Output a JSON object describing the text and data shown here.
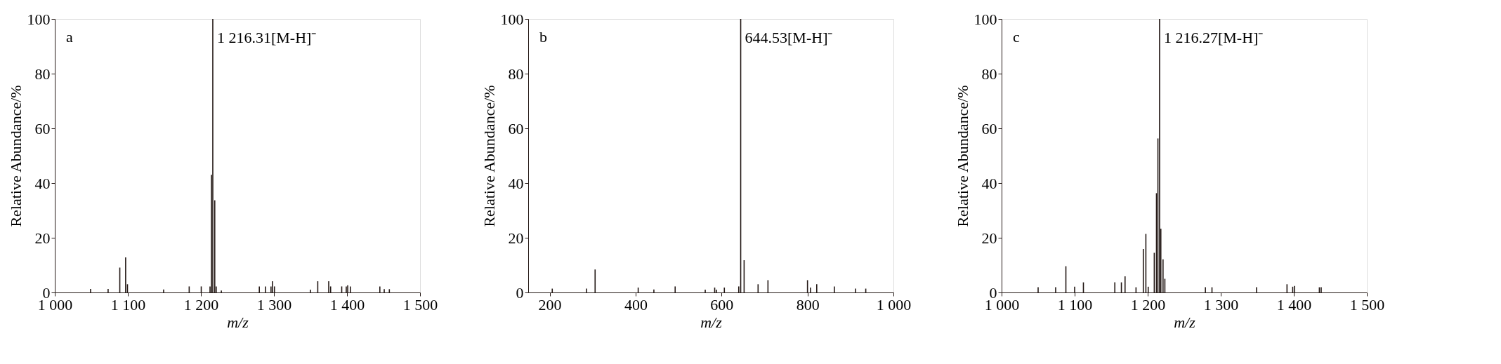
{
  "chart_data": [
    {
      "type": "bar",
      "xlabel": "m/z",
      "ylabel": "Relative Abundance/%",
      "xlim": [
        1000,
        1500
      ],
      "xticks": [
        {
          "value": 1000,
          "label": "1 000"
        },
        {
          "value": 1100,
          "label": "1 100"
        },
        {
          "value": 1200,
          "label": "1 200"
        },
        {
          "value": 1300,
          "label": "1 300"
        },
        {
          "value": 1400,
          "label": "1 400"
        },
        {
          "value": 1500,
          "label": "1 500"
        }
      ],
      "ylim": [
        0,
        100
      ],
      "yticks": [
        0,
        20,
        40,
        60,
        80,
        100
      ],
      "annotations": [
        "a",
        {
          "text": "1 216.31[M-H]⁻",
          "x": 1216.31,
          "y": 93
        }
      ],
      "x": [
        1049,
        1073,
        1089,
        1097,
        1099.5,
        1149,
        1184,
        1200.5,
        1212.5,
        1214.5,
        1216.31,
        1219,
        1221,
        1228,
        1280,
        1288.5,
        1296,
        1298,
        1300.7,
        1350,
        1360,
        1375,
        1377.6,
        1392.8,
        1399,
        1401,
        1404.7,
        1445,
        1451,
        1458
      ],
      "series": [
        {
          "color": "#231815",
          "values": [
            1.3,
            1.3,
            9.1,
            12.8,
            3.0,
            1.1,
            2.2,
            2.2,
            2.2,
            43,
            100,
            33.7,
            2.2,
            0.7,
            2.2,
            2.2,
            2.2,
            4.1,
            2.2,
            1.0,
            4.1,
            4.1,
            2.2,
            2.2,
            2.2,
            2.6,
            2.2,
            2.2,
            1.2,
            1.2
          ]
        }
      ]
    },
    {
      "type": "bar",
      "xlabel": "m/z",
      "ylabel": "Relative Abundance/%",
      "xlim": [
        150,
        1000
      ],
      "xticks": [
        200,
        400,
        600,
        800,
        {
          "value": 1000,
          "label": "1 000"
        }
      ],
      "ylim": [
        0,
        100
      ],
      "yticks": [
        0,
        20,
        40,
        60,
        80,
        100
      ],
      "annotations": [
        "b",
        {
          "text": "644.53[M-H]⁻",
          "x": 644.53,
          "y": 93
        }
      ],
      "x": [
        206,
        286,
        305.7,
        406,
        442.5,
        492,
        562,
        584,
        588,
        606.5,
        640,
        644.53,
        652.5,
        685,
        708,
        800,
        807,
        821.5,
        862.5,
        912,
        935.6
      ],
      "series": [
        {
          "color": "#231815",
          "values": [
            1.4,
            1.4,
            8.4,
            1.8,
            1.1,
            2.2,
            1.0,
            1.8,
            1.0,
            1.8,
            2.2,
            100,
            11.8,
            3.0,
            4.5,
            4.5,
            1.8,
            3.0,
            2.2,
            1.4,
            1.4
          ]
        }
      ]
    },
    {
      "type": "bar",
      "xlabel": "m/z",
      "ylabel": "Relative Abundance/%",
      "xlim": [
        1000,
        1500
      ],
      "xticks": [
        {
          "value": 1000,
          "label": "1 000"
        },
        {
          "value": 1100,
          "label": "1 100"
        },
        {
          "value": 1200,
          "label": "1 200"
        },
        {
          "value": 1300,
          "label": "1 300"
        },
        {
          "value": 1400,
          "label": "1 400"
        },
        {
          "value": 1500,
          "label": "1 500"
        }
      ],
      "ylim": [
        0,
        100
      ],
      "yticks": [
        0,
        20,
        40,
        60,
        80,
        100
      ],
      "annotations": [
        "c",
        {
          "text": "1 216.27[M-H]⁻",
          "x": 1216.27,
          "y": 93
        }
      ],
      "x": [
        1050,
        1074,
        1088,
        1100,
        1112,
        1155,
        1164,
        1169,
        1184,
        1194,
        1197.5,
        1200.7,
        1209,
        1212,
        1214,
        1216.27,
        1218,
        1221,
        1223.5,
        1279,
        1288,
        1349,
        1390.7,
        1398.5,
        1401,
        1435,
        1437.5
      ],
      "series": [
        {
          "color": "#231815",
          "values": [
            1.9,
            1.9,
            9.6,
            2.1,
            3.7,
            3.7,
            3.7,
            5.9,
            1.9,
            15.9,
            21.4,
            2.1,
            14.5,
            36.3,
            56.3,
            100,
            23.3,
            12.1,
            5.0,
            1.9,
            1.9,
            1.9,
            3.0,
            2.1,
            2.4,
            1.9,
            1.9
          ]
        }
      ]
    }
  ]
}
